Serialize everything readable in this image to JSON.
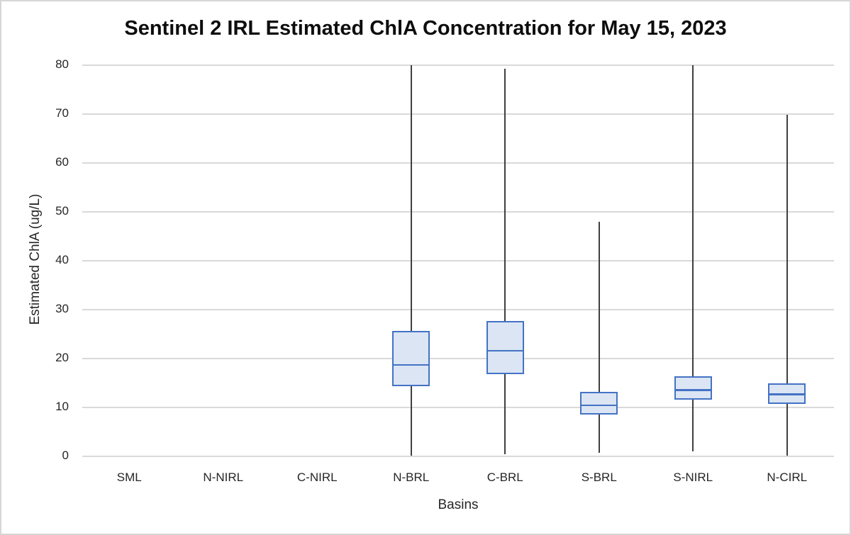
{
  "chart_data": {
    "type": "boxplot",
    "title": "Sentinel 2 IRL Estimated ChlA Concentration for May 15, 2023",
    "xlabel": "Basins",
    "ylabel": "Estimated ChlA (ug/L)",
    "categories": [
      "SML",
      "N-NIRL",
      "C-NIRL",
      "N-BRL",
      "C-BRL",
      "S-BRL",
      "S-NIRL",
      "N-CIRL"
    ],
    "yticks": [
      0,
      10,
      20,
      30,
      40,
      50,
      60,
      70,
      80
    ],
    "ylim": [
      0,
      80
    ],
    "grid": true,
    "legend": "none",
    "boxes": [
      {
        "category": "SML",
        "values": null
      },
      {
        "category": "N-NIRL",
        "values": null
      },
      {
        "category": "C-NIRL",
        "values": null
      },
      {
        "category": "N-BRL",
        "values": {
          "min": 0.2,
          "q1": 14.3,
          "median": 18.7,
          "q3": 25.6,
          "max": 80
        }
      },
      {
        "category": "C-BRL",
        "values": {
          "min": 0.5,
          "q1": 16.8,
          "median": 21.6,
          "q3": 27.7,
          "max": 79.3
        }
      },
      {
        "category": "S-BRL",
        "values": {
          "min": 0.7,
          "q1": 8.5,
          "median": 10.5,
          "q3": 13.2,
          "max": 48
        }
      },
      {
        "category": "S-NIRL",
        "values": {
          "min": 1.0,
          "q1": 11.6,
          "median": 13.6,
          "q3": 16.4,
          "max": 80
        }
      },
      {
        "category": "N-CIRL",
        "values": {
          "min": 0.1,
          "q1": 10.7,
          "median": 12.7,
          "q3": 14.9,
          "max": 69.8
        }
      }
    ],
    "colors": {
      "box_fill": "#dbe5f4",
      "box_border": "#4472c4",
      "median": "#4472c4",
      "whisker": "#3f3f3f",
      "gridline": "#d9d9d9",
      "text": "#262626",
      "title_text": "#0d0d0d",
      "frame_border": "#d6d6d6",
      "background": "#ffffff"
    }
  }
}
